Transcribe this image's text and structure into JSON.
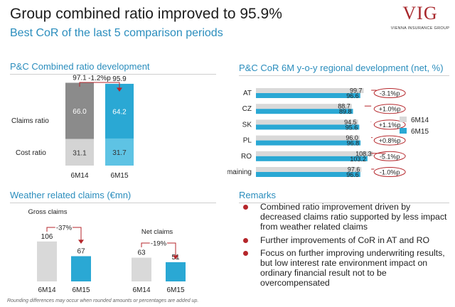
{
  "title": "Group combined ratio improved to 95.9%",
  "subtitle": "Best CoR of the last 5 comparison periods",
  "logo": {
    "main": "VIG",
    "sub": "VIENNA INSURANCE GROUP"
  },
  "colors": {
    "accent_blue": "#2a8dbd",
    "bar_blue": "#2aa8d4",
    "bar_grey": "#d4d4d4",
    "dark_grey": "#8b8b8b",
    "light_grey": "#d9d9d9",
    "red": "#b5262b"
  },
  "combined": {
    "title": "P&C Combined ratio development",
    "row_labels": [
      "Claims ratio",
      "Cost ratio"
    ],
    "chart_data": {
      "type": "bar",
      "stacked": true,
      "categories": [
        "6M14",
        "6M15"
      ],
      "series": [
        {
          "name": "Claims ratio",
          "values": [
            66.0,
            64.2
          ]
        },
        {
          "name": "Cost ratio",
          "values": [
            31.1,
            31.7
          ]
        }
      ],
      "totals": [
        "97.1",
        "95.9"
      ],
      "value_labels": {
        "claims": [
          "66.0",
          "64.2"
        ],
        "cost": [
          "31.1",
          "31.7"
        ]
      },
      "change_label": "-1.2%p",
      "title": "P&C Combined ratio development"
    }
  },
  "regional": {
    "title": "P&C CoR 6M y-o-y regional development (net, %)",
    "chart_data": {
      "type": "bar",
      "orientation": "horizontal",
      "categories": [
        "AT",
        "CZ",
        "SK",
        "PL",
        "RO",
        "Remaining"
      ],
      "series": [
        {
          "name": "6M14",
          "values": [
            99.7,
            88.7,
            94.5,
            96.0,
            108.3,
            97.6
          ],
          "labels": [
            "99.7",
            "88.7",
            "94.5",
            "96.0",
            "108.3",
            "97.6"
          ]
        },
        {
          "name": "6M15",
          "values": [
            96.6,
            89.8,
            95.6,
            96.8,
            103.2,
            96.6
          ],
          "labels": [
            "96.6",
            "89.8",
            "95.6",
            "96.8",
            "103.2",
            "96.6"
          ]
        }
      ],
      "changes": [
        "-3.1%p",
        "+1.0%p",
        "+1.1%p",
        "+0.8%p",
        "-5.1%p",
        "-1.0%p"
      ],
      "legend": [
        "6M14",
        "6M15"
      ],
      "legend_position": "right"
    }
  },
  "weather": {
    "title": "Weather related claims (€mn)",
    "gross": {
      "chart_data": {
        "type": "bar",
        "title": "Gross claims",
        "categories": [
          "6M14",
          "6M15"
        ],
        "values": [
          106,
          67
        ],
        "labels": [
          "106",
          "67"
        ],
        "change_label": "-37%"
      }
    },
    "net": {
      "chart_data": {
        "type": "bar",
        "title": "Net claims",
        "categories": [
          "6M14",
          "6M15"
        ],
        "values": [
          63,
          51
        ],
        "labels": [
          "63",
          "51"
        ],
        "change_label": "-19%"
      }
    }
  },
  "remarks": {
    "title": "Remarks",
    "items": [
      "Combined ratio improvement driven by decreased claims ratio supported by less impact from weather related claims",
      "Further improvements of CoR in AT and RO",
      "Focus on further improving underwriting results, but low interest rate environment impact on ordinary financial result not to be overcompensated"
    ]
  },
  "footnote": "Rounding differences may occur when rounded amounts or percentages are added up."
}
